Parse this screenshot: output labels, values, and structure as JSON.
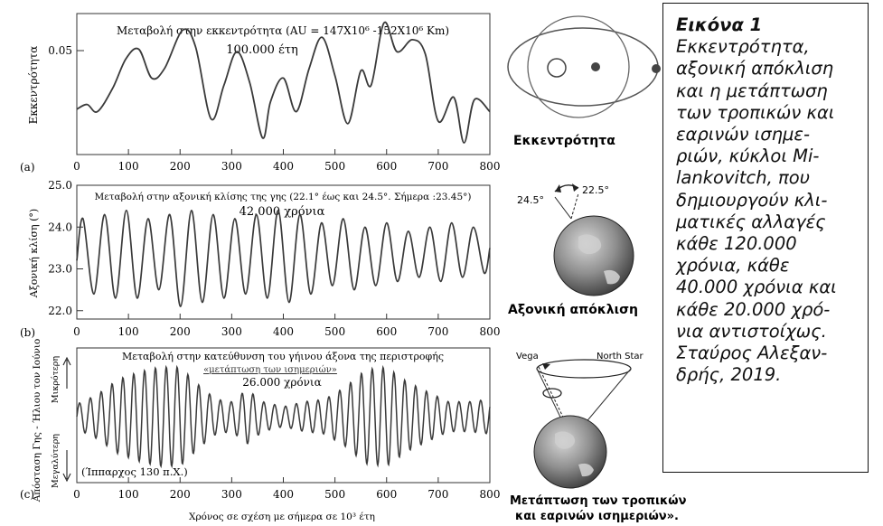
{
  "chart_data": [
    {
      "type": "line",
      "panel_label": "(a)",
      "title": "Μεταβολή στην εκκεντρότητα (AU = 147X10⁶ -152X10⁶ Km)",
      "period_label": "100.000 έτη",
      "ylabel": "Εκκεντρότητα",
      "xlim": [
        0,
        800
      ],
      "ylim": [
        0.0,
        0.055
      ],
      "x_ticks": [
        "0",
        "100",
        "200",
        "300",
        "400",
        "500",
        "600",
        "700",
        "800"
      ],
      "y_ticks": [
        "0.05"
      ],
      "x": [
        0,
        20,
        40,
        70,
        95,
        120,
        145,
        170,
        205,
        230,
        260,
        285,
        310,
        335,
        360,
        375,
        400,
        425,
        450,
        475,
        500,
        525,
        550,
        570,
        595,
        620,
        650,
        675,
        700,
        730,
        750,
        770,
        800
      ],
      "values": [
        0.017,
        0.019,
        0.016,
        0.026,
        0.038,
        0.042,
        0.03,
        0.034,
        0.05,
        0.043,
        0.013,
        0.027,
        0.041,
        0.028,
        0.005,
        0.02,
        0.03,
        0.016,
        0.034,
        0.047,
        0.031,
        0.011,
        0.033,
        0.027,
        0.053,
        0.041,
        0.046,
        0.04,
        0.012,
        0.022,
        0.003,
        0.021,
        0.016
      ]
    },
    {
      "type": "line",
      "panel_label": "(b)",
      "title": "Μεταβολή στην αξονική κλίσης της γης (22.1° έως και 24.5°. Σήμερα :23.45°)",
      "period_label": "42.000 χρόνια",
      "ylabel": "Αξονική κλίση (°)",
      "xlim": [
        0,
        800
      ],
      "ylim": [
        21.8,
        25.0
      ],
      "x_ticks": [
        "0",
        "100",
        "200",
        "300",
        "400",
        "500",
        "600",
        "700",
        "800"
      ],
      "y_ticks": [
        "22.0",
        "23.0",
        "24.0",
        "25.0"
      ],
      "x": [
        0,
        12,
        33,
        54,
        75,
        96,
        117,
        138,
        159,
        180,
        201,
        222,
        243,
        264,
        285,
        306,
        327,
        348,
        369,
        390,
        411,
        432,
        453,
        474,
        495,
        516,
        537,
        558,
        579,
        600,
        621,
        642,
        663,
        684,
        705,
        726,
        747,
        768,
        789,
        800
      ],
      "values": [
        23.2,
        24.2,
        22.4,
        24.3,
        22.3,
        24.4,
        22.3,
        24.2,
        22.5,
        24.3,
        22.1,
        24.4,
        22.2,
        24.3,
        22.3,
        24.2,
        22.4,
        24.3,
        22.3,
        24.4,
        22.2,
        24.3,
        22.4,
        24.1,
        22.6,
        24.2,
        22.5,
        24.0,
        22.6,
        24.1,
        22.7,
        23.9,
        22.8,
        24.0,
        22.7,
        24.1,
        22.8,
        24.0,
        22.9,
        23.5
      ]
    },
    {
      "type": "line",
      "panel_label": "(c)",
      "title": "Μεταβολή στην κατεύθυνση του γήινου άξονα της περιστροφής",
      "subtitle": "«μετάπτωση των ισημεριών»",
      "period_label": "26.000 χρόνια",
      "ylabel": "Απόσταση Γης - Ήλιου τον Ιούνιο",
      "arrow_up_label": "Μικρότερη",
      "arrow_down_label": "Μεγαλύτερη",
      "annotation": "(Ίππαρχος 130 π.Χ.)",
      "xlabel": "Χρόνος σε σχέση με σήμερα σε 10³ έτη",
      "xlim": [
        0,
        800
      ],
      "x_ticks": [
        "0",
        "100",
        "200",
        "300",
        "400",
        "500",
        "600",
        "700",
        "800"
      ],
      "y_ticks": [],
      "wave_period": 21,
      "envelope": {
        "x": [
          0,
          40,
          80,
          120,
          160,
          200,
          240,
          270,
          300,
          330,
          360,
          400,
          440,
          480,
          520,
          560,
          600,
          640,
          680,
          720,
          760,
          800
        ],
        "amplitude": [
          0.25,
          0.45,
          0.75,
          0.9,
          1.0,
          1.0,
          0.6,
          0.35,
          0.3,
          0.55,
          0.3,
          0.2,
          0.3,
          0.35,
          0.6,
          0.95,
          1.0,
          0.7,
          0.5,
          0.3,
          0.3,
          0.35
        ]
      }
    }
  ],
  "illustrations": {
    "eccentricity_label": "Εκκεντρότητα",
    "obliquity_label": "Αξονική απόκλιση",
    "obliquity_angle_max": "24.5°",
    "obliquity_angle_min": "22.5°",
    "precession_star_left": "Vega",
    "precession_star_right": "North Star",
    "precession_label_line1": "Μετάπτωση των τροπικών",
    "precession_label_line2": "και εαρινών ισημεριών»."
  },
  "caption": {
    "title": "Εικόνα 1",
    "lines": [
      "Εκκεντρότητα,",
      "αξονική απόκλιση",
      "και η μετάπτωση",
      "των τροπικών και",
      "εαρινών ισημε-",
      "ριών, κύκλοι Mi-",
      "lankovitch, που",
      "δημιουργούν κλι-",
      "ματικές αλλαγές",
      "κάθε 120.000",
      "χρόνια, κάθε",
      "40.000 χρόνια και",
      "κάθε 20.000 χρό-",
      "νια αντιστοίχως.",
      "Σταύρος Αλεξαν-",
      "δρής, 2019."
    ]
  }
}
